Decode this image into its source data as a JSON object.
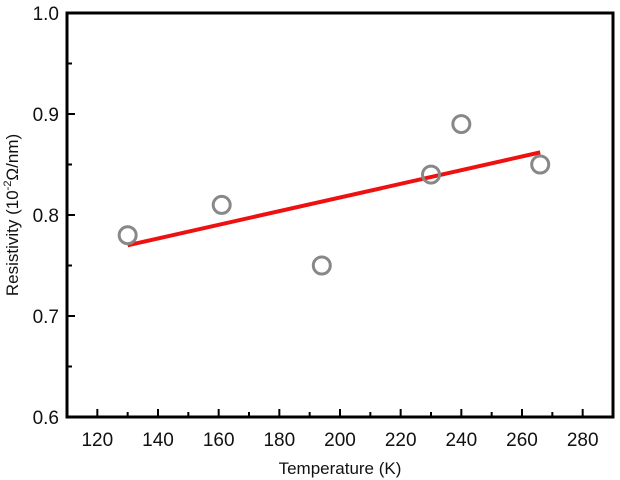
{
  "chart_data": {
    "type": "scatter",
    "xlabel": "Temperature (K)",
    "ylabel": {
      "prefix": "Resistivity (10",
      "superscript": "-2",
      "suffix": "Ω/nm)"
    },
    "xlim": [
      110,
      290
    ],
    "ylim": [
      0.6,
      1.0
    ],
    "x_ticks": [
      120,
      140,
      160,
      180,
      200,
      220,
      240,
      260,
      280
    ],
    "x_tick_labels": [
      "120",
      "140",
      "160",
      "180",
      "200",
      "220",
      "240",
      "260",
      "280"
    ],
    "y_ticks": [
      0.6,
      0.7,
      0.8,
      0.9,
      1.0
    ],
    "y_tick_labels": [
      "0.6",
      "0.7",
      "0.8",
      "0.9",
      "1.0"
    ],
    "grid": false,
    "series": [
      {
        "marker": "open-circle",
        "color": "#888888",
        "x": [
          130,
          161,
          194,
          230,
          240,
          266
        ],
        "y": [
          0.78,
          0.81,
          0.75,
          0.84,
          0.89,
          0.85
        ]
      }
    ],
    "fit_line": {
      "color": "#ee1111",
      "x": [
        130,
        266
      ],
      "y": [
        0.77,
        0.862
      ]
    }
  }
}
